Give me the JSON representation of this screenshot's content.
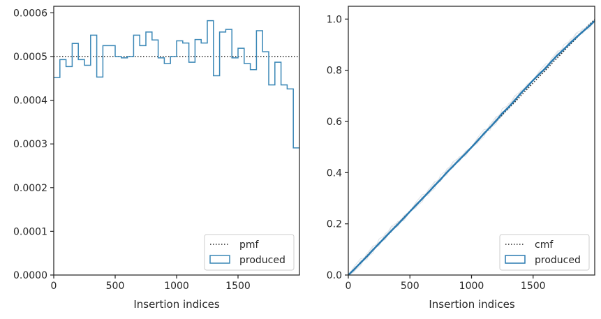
{
  "chart_data": [
    {
      "type": "histogram-step",
      "xlabel": "Insertion indices",
      "ylabel": "",
      "xlim": [
        0,
        2000
      ],
      "ylim": [
        0,
        0.000615
      ],
      "xticks": [
        0,
        500,
        1000,
        1500
      ],
      "xtick_labels": [
        "0",
        "500",
        "1000",
        "1500"
      ],
      "yticks": [
        0,
        0.0001,
        0.0002,
        0.0003,
        0.0004,
        0.0005,
        0.0006
      ],
      "ytick_labels": [
        "0.0000",
        "0.0001",
        "0.0002",
        "0.0003",
        "0.0004",
        "0.0005",
        "0.0006"
      ],
      "grid": false,
      "legend": {
        "position": "lower-right",
        "entries": [
          "pmf",
          "produced"
        ]
      },
      "pmf": {
        "name": "pmf",
        "value": 0.0005,
        "color": "#262626",
        "style": "dotted"
      },
      "bin_width": 50,
      "bin_start": 0,
      "series": [
        {
          "name": "produced",
          "color": "#3a87b6",
          "values": [
            0.000452,
            0.000493,
            0.000477,
            0.00053,
            0.000493,
            0.00048,
            0.000549,
            0.000453,
            0.000525,
            0.000525,
            0.0005,
            0.000497,
            0.0005,
            0.000549,
            0.000525,
            0.000556,
            0.000538,
            0.000497,
            0.000484,
            0.0005,
            0.000536,
            0.000531,
            0.000487,
            0.000539,
            0.000531,
            0.000582,
            0.000456,
            0.000556,
            0.000562,
            0.000497,
            0.000519,
            0.000484,
            0.00047,
            0.000559,
            0.000511,
            0.000435,
            0.000487,
            0.000435,
            0.000426,
            0.000291
          ]
        }
      ]
    },
    {
      "type": "line",
      "xlabel": "Insertion indices",
      "ylabel": "",
      "xlim": [
        0,
        2000
      ],
      "ylim": [
        0,
        1.05
      ],
      "xticks": [
        0,
        500,
        1000,
        1500
      ],
      "xtick_labels": [
        "0",
        "500",
        "1000",
        "1500"
      ],
      "yticks": [
        0,
        0.2,
        0.4,
        0.6,
        0.8,
        1.0
      ],
      "ytick_labels": [
        "0.0",
        "0.2",
        "0.4",
        "0.6",
        "0.8",
        "1.0"
      ],
      "grid": false,
      "legend": {
        "position": "lower-right",
        "entries": [
          "cmf",
          "produced"
        ]
      },
      "cmf": {
        "name": "cmf",
        "x": [
          0,
          2000
        ],
        "y": [
          0,
          1.0
        ],
        "color": "#262626",
        "style": "dotted"
      },
      "series": [
        {
          "name": "produced",
          "color": "#2a7ab0",
          "x": [
            0,
            50,
            100,
            150,
            200,
            250,
            300,
            350,
            400,
            450,
            500,
            550,
            600,
            650,
            700,
            750,
            800,
            850,
            900,
            950,
            1000,
            1050,
            1100,
            1150,
            1200,
            1250,
            1300,
            1350,
            1400,
            1450,
            1500,
            1550,
            1600,
            1650,
            1700,
            1750,
            1800,
            1850,
            1900,
            1950,
            2000
          ],
          "y": [
            0,
            0.023,
            0.048,
            0.072,
            0.098,
            0.123,
            0.148,
            0.173,
            0.197,
            0.222,
            0.248,
            0.273,
            0.298,
            0.323,
            0.349,
            0.374,
            0.401,
            0.425,
            0.45,
            0.474,
            0.499,
            0.525,
            0.552,
            0.577,
            0.603,
            0.632,
            0.655,
            0.682,
            0.71,
            0.735,
            0.761,
            0.785,
            0.808,
            0.835,
            0.86,
            0.882,
            0.906,
            0.928,
            0.95,
            0.97,
            0.993
          ]
        }
      ],
      "ghost_color": "#dfe3e8"
    }
  ]
}
